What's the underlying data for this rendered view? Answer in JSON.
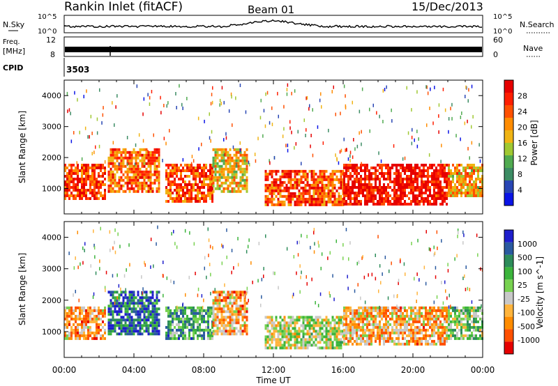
{
  "header": {
    "title": "Rankin Inlet (fitACF)",
    "beam": "Beam 01",
    "date": "15/Dec/2013"
  },
  "top_panels": {
    "nsky": {
      "label": "N.Sky",
      "ticks": [
        "10^5",
        "10^0"
      ],
      "right_ticks": [
        "10^5",
        "10^0"
      ],
      "right_label": "N.Search"
    },
    "freq": {
      "label_line1": "Freq.",
      "label_line2": "[MHz]",
      "ticks": [
        "12",
        "8"
      ],
      "right_ticks": [
        "60",
        "0"
      ],
      "right_label": "Nave"
    },
    "cpid": {
      "label": "CPID",
      "value": "3503"
    }
  },
  "colors": {
    "power_scale": [
      "#0a14e6",
      "#2846b4",
      "#3c8c64",
      "#50aa50",
      "#a0c832",
      "#f0b414",
      "#ff8c00",
      "#ff5000",
      "#ff1e00",
      "#e60000"
    ],
    "velocity_scale": [
      "#e60000",
      "#ff5000",
      "#ff8c00",
      "#ffb43c",
      "#c8c8c8",
      "#78d250",
      "#3cb43c",
      "#2d8c5a",
      "#2a5aa0",
      "#1e1ecc"
    ]
  },
  "chart_data": [
    {
      "type": "heatmap",
      "name": "power",
      "xlabel": "",
      "ylabel": "Slant Range [km]",
      "xlim": [
        0,
        24
      ],
      "ylim": [
        180,
        4500
      ],
      "y_ticks": [
        "1000",
        "2000",
        "3000",
        "4000"
      ],
      "colorbar": {
        "label": "Power [dB]",
        "ticks": [
          "4",
          "8",
          "12",
          "16",
          "20",
          "24",
          "28"
        ]
      },
      "bands": [
        {
          "t0": 0,
          "t1": 2.3,
          "r0": 700,
          "r1": 1800,
          "level": 0.82
        },
        {
          "t0": 2.5,
          "t1": 5.5,
          "r0": 900,
          "r1": 2300,
          "level": 0.72
        },
        {
          "t0": 5.8,
          "t1": 8.5,
          "r0": 600,
          "r1": 1800,
          "level": 0.78
        },
        {
          "t0": 8.5,
          "t1": 10.5,
          "r0": 900,
          "r1": 2300,
          "level": 0.55
        },
        {
          "t0": 11.5,
          "t1": 16,
          "r0": 500,
          "r1": 1600,
          "level": 0.78
        },
        {
          "t0": 16,
          "t1": 22,
          "r0": 500,
          "r1": 1800,
          "level": 0.92
        },
        {
          "t0": 22,
          "t1": 24,
          "r0": 800,
          "r1": 1800,
          "level": 0.62
        }
      ]
    },
    {
      "type": "heatmap",
      "name": "velocity",
      "xlabel": "Time UT",
      "ylabel": "Slant Range [km]",
      "xlim": [
        0,
        24
      ],
      "ylim": [
        180,
        4500
      ],
      "x_ticks": [
        "00:00",
        "04:00",
        "08:00",
        "12:00",
        "16:00",
        "20:00",
        "00:00"
      ],
      "y_ticks": [
        "1000",
        "2000",
        "3000",
        "4000"
      ],
      "colorbar": {
        "label": "Velocity [m s^-1]",
        "ticks": [
          "1000",
          "500",
          "100",
          "25",
          "-25",
          "-100",
          "-500",
          "-1000"
        ]
      },
      "bands": [
        {
          "t0": 0,
          "t1": 2.3,
          "r0": 800,
          "r1": 1800,
          "level": 0.3
        },
        {
          "t0": 2.5,
          "t1": 5.5,
          "r0": 900,
          "r1": 2300,
          "level": 0.82
        },
        {
          "t0": 5.8,
          "t1": 8.5,
          "r0": 800,
          "r1": 1800,
          "level": 0.68
        },
        {
          "t0": 8.5,
          "t1": 10.5,
          "r0": 900,
          "r1": 2300,
          "level": 0.3
        },
        {
          "t0": 11.5,
          "t1": 16,
          "r0": 500,
          "r1": 1500,
          "level": 0.48
        },
        {
          "t0": 16,
          "t1": 22,
          "r0": 600,
          "r1": 1800,
          "level": 0.32
        },
        {
          "t0": 22,
          "t1": 24,
          "r0": 800,
          "r1": 1800,
          "level": 0.58
        }
      ]
    }
  ]
}
